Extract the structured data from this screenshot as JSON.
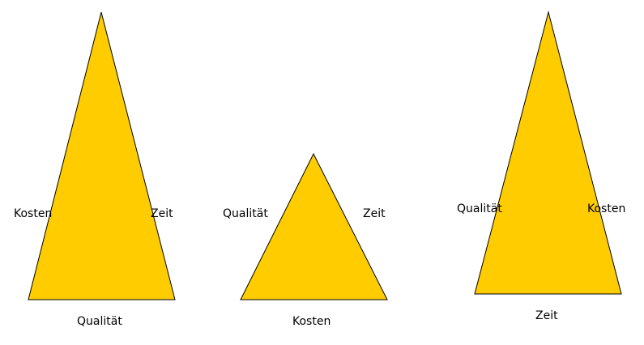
{
  "colors": {
    "fill": "#ffcc00",
    "stroke": "#000000",
    "background": "#ffffff"
  },
  "triangles": [
    {
      "left_label": "Kosten",
      "right_label": "Zeit",
      "base_label": "Qualität"
    },
    {
      "left_label": "Qualität",
      "right_label": "Zeit",
      "base_label": "Kosten"
    },
    {
      "left_label": "Qualität",
      "right_label": "Kosten",
      "base_label": "Zeit"
    }
  ]
}
